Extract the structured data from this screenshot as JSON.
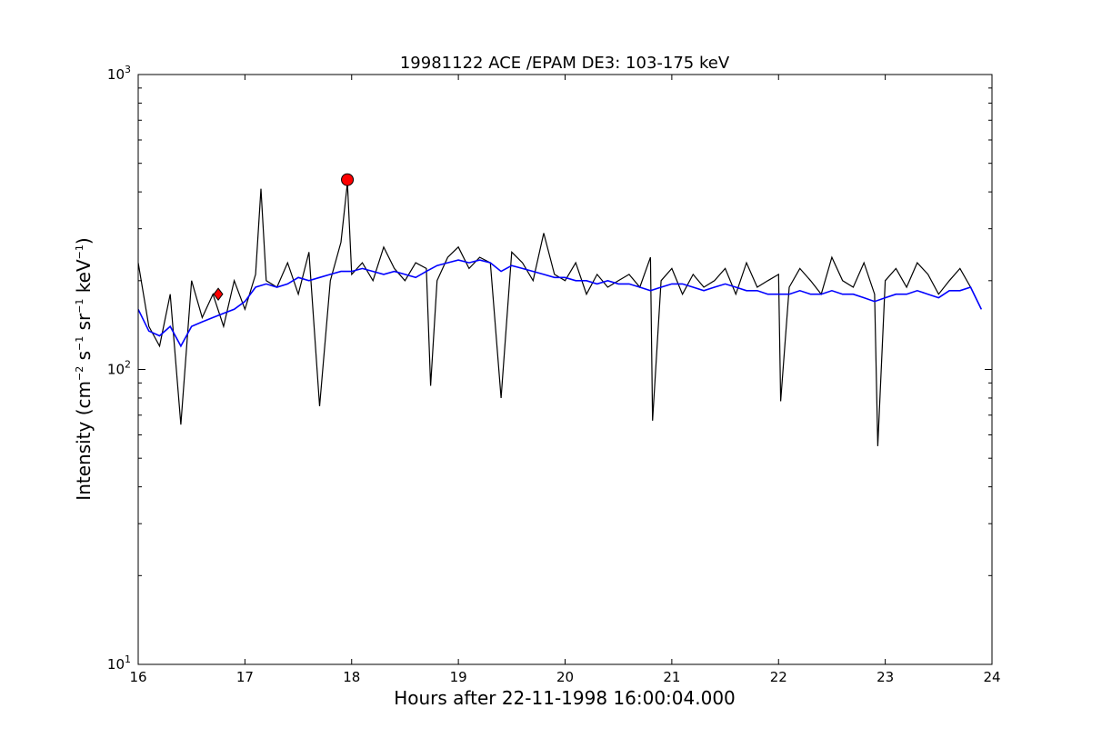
{
  "chart_data": {
    "type": "line",
    "title": "19981122 ACE /EPAM DE3: 103-175 keV",
    "xlabel": "Hours after 22-11-1998 16:00:04.000",
    "ylabel": "Intensity (cm",
    "ylabel_parts": {
      "base": "Intensity (cm",
      "sup1": "−2",
      "s": " s",
      "sup2": "−1",
      "sr": " sr",
      "sup3": "−1",
      "kev": " keV",
      "sup4": "−1",
      "close": ")"
    },
    "xlim": [
      16,
      24
    ],
    "ylim": [
      10,
      1000
    ],
    "yscale": "log",
    "x_ticks": [
      "16",
      "17",
      "18",
      "19",
      "20",
      "21",
      "22",
      "23",
      "24"
    ],
    "y_ticks": [
      {
        "base": "10",
        "exp": "1"
      },
      {
        "base": "10",
        "exp": "2"
      },
      {
        "base": "10",
        "exp": "3"
      }
    ],
    "grid": false,
    "series": [
      {
        "color": "#000000",
        "x": [
          16.0,
          16.1,
          16.2,
          16.3,
          16.4,
          16.5,
          16.6,
          16.7,
          16.8,
          16.9,
          17.0,
          17.1,
          17.15,
          17.2,
          17.3,
          17.4,
          17.5,
          17.6,
          17.7,
          17.8,
          17.9,
          17.96,
          18.0,
          18.1,
          18.2,
          18.3,
          18.4,
          18.5,
          18.6,
          18.7,
          18.74,
          18.8,
          18.9,
          19.0,
          19.1,
          19.2,
          19.3,
          19.4,
          19.5,
          19.6,
          19.7,
          19.8,
          19.9,
          20.0,
          20.1,
          20.2,
          20.3,
          20.4,
          20.5,
          20.6,
          20.7,
          20.8,
          20.82,
          20.9,
          21.0,
          21.1,
          21.2,
          21.3,
          21.4,
          21.5,
          21.6,
          21.7,
          21.8,
          21.9,
          22.0,
          22.02,
          22.1,
          22.2,
          22.3,
          22.4,
          22.5,
          22.6,
          22.7,
          22.8,
          22.9,
          22.93,
          23.0,
          23.1,
          23.2,
          23.3,
          23.4,
          23.5,
          23.6,
          23.7,
          23.8,
          23.9
        ],
        "y": [
          230,
          140,
          120,
          180,
          65,
          200,
          150,
          180,
          140,
          200,
          160,
          210,
          410,
          200,
          190,
          230,
          180,
          250,
          75,
          200,
          270,
          430,
          210,
          230,
          200,
          260,
          220,
          200,
          230,
          220,
          88,
          200,
          240,
          260,
          220,
          240,
          230,
          80,
          250,
          230,
          200,
          290,
          210,
          200,
          230,
          180,
          210,
          190,
          200,
          210,
          190,
          240,
          67,
          200,
          220,
          180,
          210,
          190,
          200,
          220,
          180,
          230,
          190,
          200,
          210,
          78,
          190,
          220,
          200,
          180,
          240,
          200,
          190,
          230,
          180,
          55,
          200,
          220,
          190,
          230,
          210,
          180,
          200,
          220,
          190,
          160
        ]
      },
      {
        "color": "#0000ff",
        "x": [
          16.0,
          16.1,
          16.2,
          16.3,
          16.4,
          16.5,
          16.6,
          16.7,
          16.8,
          16.9,
          17.0,
          17.1,
          17.2,
          17.3,
          17.4,
          17.5,
          17.6,
          17.7,
          17.8,
          17.9,
          18.0,
          18.1,
          18.2,
          18.3,
          18.4,
          18.5,
          18.6,
          18.7,
          18.8,
          18.9,
          19.0,
          19.1,
          19.2,
          19.3,
          19.4,
          19.5,
          19.6,
          19.7,
          19.8,
          19.9,
          20.0,
          20.1,
          20.2,
          20.3,
          20.4,
          20.5,
          20.6,
          20.7,
          20.8,
          20.9,
          21.0,
          21.1,
          21.2,
          21.3,
          21.4,
          21.5,
          21.6,
          21.7,
          21.8,
          21.9,
          22.0,
          22.1,
          22.2,
          22.3,
          22.4,
          22.5,
          22.6,
          22.7,
          22.8,
          22.9,
          23.0,
          23.1,
          23.2,
          23.3,
          23.4,
          23.5,
          23.6,
          23.7,
          23.8,
          23.9
        ],
        "y": [
          160,
          135,
          130,
          140,
          120,
          140,
          145,
          150,
          155,
          160,
          170,
          190,
          195,
          190,
          195,
          205,
          200,
          205,
          210,
          215,
          215,
          220,
          215,
          210,
          215,
          210,
          205,
          215,
          225,
          230,
          235,
          230,
          235,
          230,
          215,
          225,
          220,
          215,
          210,
          205,
          205,
          200,
          200,
          195,
          200,
          195,
          195,
          190,
          185,
          190,
          195,
          195,
          190,
          185,
          190,
          195,
          190,
          185,
          185,
          180,
          180,
          180,
          185,
          180,
          180,
          185,
          180,
          180,
          175,
          170,
          175,
          180,
          180,
          185,
          180,
          175,
          185,
          185,
          190,
          160
        ]
      }
    ],
    "markers": [
      {
        "shape": "diamond",
        "color": "#ff0000",
        "x": 16.75,
        "y": 180
      },
      {
        "shape": "circle",
        "color": "#ff0000",
        "x": 17.96,
        "y": 440
      }
    ]
  }
}
